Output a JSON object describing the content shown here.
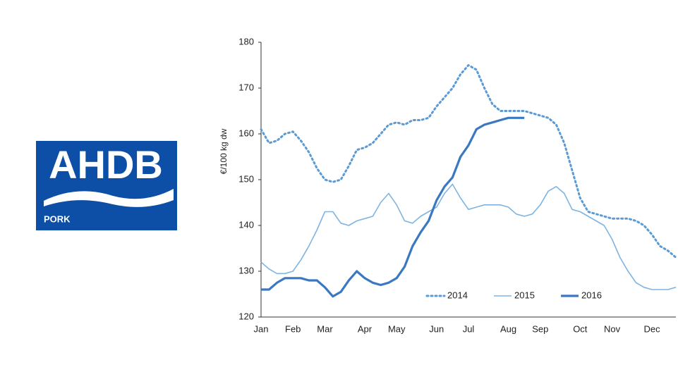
{
  "logo": {
    "title": "AHDB",
    "subtitle": "PORK"
  },
  "chart_data": {
    "type": "line",
    "y_label": "€/100 kg dw",
    "categories": [
      "Jan",
      null,
      null,
      null,
      "Feb",
      null,
      null,
      null,
      "Mar",
      null,
      null,
      null,
      null,
      "Apr",
      null,
      null,
      null,
      "May",
      null,
      null,
      null,
      null,
      "Jun",
      null,
      null,
      null,
      "Jul",
      null,
      null,
      null,
      null,
      "Aug",
      null,
      null,
      null,
      "Sep",
      null,
      null,
      null,
      null,
      "Oct",
      null,
      null,
      null,
      "Nov",
      null,
      null,
      null,
      null,
      "Dec",
      null,
      null,
      null
    ],
    "series": [
      {
        "name": "2014",
        "color": "#5b9bd5",
        "style": "dotted",
        "values": [
          161,
          158,
          158.5,
          160,
          160.5,
          158.5,
          156,
          152.5,
          150,
          149.5,
          150,
          153,
          156.5,
          157,
          158,
          160,
          162,
          162.5,
          162,
          163,
          163,
          163.5,
          166,
          168,
          170,
          173,
          175,
          174,
          170,
          166.5,
          165,
          165,
          165,
          165,
          164.5,
          164,
          163.5,
          162,
          158,
          152,
          146,
          143,
          142.5,
          142,
          141.5,
          141.5,
          141.5,
          141,
          140,
          138,
          135.5,
          134.5,
          133
        ]
      },
      {
        "name": "2015",
        "color": "#7fb4e0",
        "style": "thin",
        "values": [
          132,
          130.5,
          129.5,
          129.5,
          130,
          132.5,
          135.5,
          139,
          143,
          143,
          140.5,
          140,
          141,
          141.5,
          142,
          145,
          147,
          144.5,
          141,
          140.5,
          142,
          143,
          144,
          147,
          149,
          146,
          143.5,
          144,
          144.5,
          144.5,
          144.5,
          144,
          142.5,
          142,
          142.5,
          144.5,
          147.5,
          148.5,
          147,
          143.5,
          143,
          142,
          141,
          140,
          137,
          133,
          130,
          127.5,
          126.5,
          126,
          126,
          126,
          126.5
        ]
      },
      {
        "name": "2016",
        "color": "#3a78c2",
        "style": "thick",
        "values": [
          126,
          126,
          127.5,
          128.5,
          128.5,
          128.5,
          128,
          128,
          126.5,
          124.5,
          125.5,
          128,
          130,
          128.5,
          127.5,
          127,
          127.5,
          128.5,
          131,
          135.5,
          138.5,
          141,
          145.5,
          148.5,
          150.5,
          155,
          157.5,
          161,
          162,
          162.5,
          163,
          163.5,
          163.5,
          163.5,
          null,
          null,
          null,
          null,
          null,
          null,
          null,
          null,
          null,
          null,
          null,
          null,
          null,
          null,
          null,
          null,
          null,
          null,
          null
        ]
      }
    ],
    "ylim": [
      120,
      180
    ],
    "yticks": [
      120,
      130,
      140,
      150,
      160,
      170,
      180
    ],
    "grid": false
  }
}
